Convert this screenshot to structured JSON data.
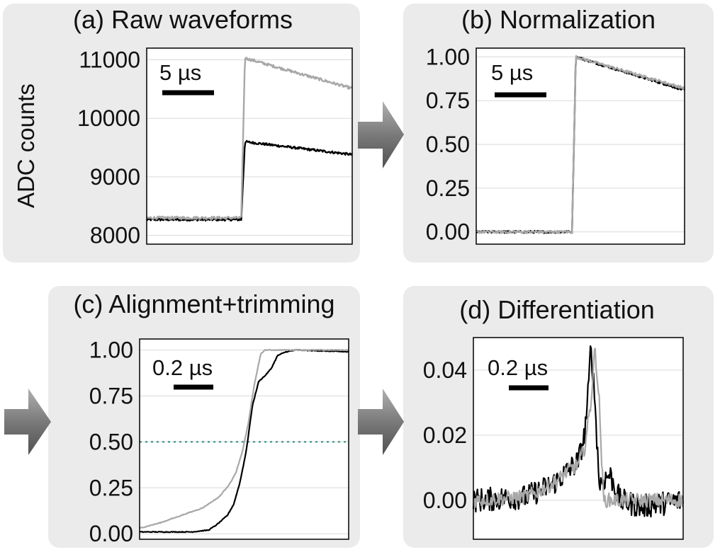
{
  "arrow_color": "#7a7a7a",
  "colors": {
    "panel_bg": "#ebebeb",
    "plot_bg": "#ffffff",
    "grid": "#d9d9d9",
    "black_trace": "#000000",
    "gray_trace": "#a8a8a8",
    "threshold_line": "#2a8a7a"
  },
  "chart_data": [
    {
      "id": "a",
      "type": "line",
      "title": "(a) Raw waveforms",
      "ylabel": "ADC counts",
      "ylim": [
        7850,
        11200
      ],
      "yticks": [
        "8000",
        "9000",
        "10000",
        "11000"
      ],
      "ytick_values": [
        8000,
        9000,
        10000,
        11000
      ],
      "scale_bar": "5 µs",
      "grid": true,
      "series": [
        {
          "color": "black",
          "values_summary": {
            "baseline": 8270,
            "step_at_fraction": 0.46,
            "peak": 9600,
            "end": 9380
          }
        },
        {
          "color": "gray",
          "values_summary": {
            "baseline": 8300,
            "step_at_fraction": 0.46,
            "peak": 11030,
            "end": 10510
          }
        }
      ]
    },
    {
      "id": "b",
      "type": "line",
      "title": "(b) Normalization",
      "ylim": [
        -0.07,
        1.05
      ],
      "yticks": [
        "0.00",
        "0.25",
        "0.50",
        "0.75",
        "1.00"
      ],
      "ytick_values": [
        0,
        0.25,
        0.5,
        0.75,
        1.0
      ],
      "scale_bar": "5 µs",
      "grid": true,
      "series": [
        {
          "color": "black",
          "values_summary": {
            "baseline": 0.0,
            "step_at_fraction": 0.46,
            "peak": 1.0,
            "end": 0.81
          }
        },
        {
          "color": "gray",
          "values_summary": {
            "baseline": 0.0,
            "step_at_fraction": 0.46,
            "peak": 1.0,
            "end": 0.82
          }
        }
      ]
    },
    {
      "id": "c",
      "type": "line",
      "title": "(c) Alignment+trimming",
      "ylim": [
        -0.03,
        1.06
      ],
      "yticks": [
        "0.00",
        "0.25",
        "0.50",
        "0.75",
        "1.00"
      ],
      "ytick_values": [
        0,
        0.25,
        0.5,
        0.75,
        1.0
      ],
      "scale_bar": "0.2 µs",
      "grid": true,
      "threshold": 0.5,
      "series": [
        {
          "color": "black",
          "x": [
            0,
            0.1,
            0.25,
            0.33,
            0.37,
            0.42,
            0.45,
            0.48,
            0.51,
            0.54,
            0.57,
            0.6,
            0.63,
            0.66,
            0.7,
            0.75,
            1.0
          ],
          "y": [
            0.01,
            0.01,
            0.01,
            0.02,
            0.05,
            0.1,
            0.16,
            0.28,
            0.45,
            0.7,
            0.83,
            0.86,
            0.9,
            0.97,
            0.99,
            1.0,
            0.99
          ]
        },
        {
          "color": "gray",
          "x": [
            0,
            0.1,
            0.2,
            0.3,
            0.38,
            0.43,
            0.46,
            0.49,
            0.52,
            0.55,
            0.58,
            0.6,
            0.63,
            1.0
          ],
          "y": [
            0.03,
            0.06,
            0.1,
            0.14,
            0.2,
            0.27,
            0.33,
            0.44,
            0.6,
            0.82,
            0.98,
            1.0,
            1.0,
            1.0
          ]
        }
      ]
    },
    {
      "id": "d",
      "type": "line",
      "title": "(d) Differentiation",
      "ylim": [
        -0.012,
        0.05
      ],
      "yticks": [
        "0.00",
        "0.02",
        "0.04"
      ],
      "ytick_values": [
        0,
        0.02,
        0.04
      ],
      "scale_bar": "0.2 µs",
      "grid": true,
      "series": [
        {
          "color": "black",
          "x": [
            0,
            0.25,
            0.35,
            0.4,
            0.45,
            0.5,
            0.53,
            0.55,
            0.56,
            0.58,
            0.6,
            0.65,
            0.7,
            0.8,
            1.0
          ],
          "y": [
            0.0,
            0.001,
            0.004,
            0.006,
            0.009,
            0.012,
            0.02,
            0.035,
            0.048,
            0.03,
            0.005,
            0.008,
            0.0,
            -0.002,
            0.0
          ]
        },
        {
          "color": "gray",
          "x": [
            0,
            0.25,
            0.35,
            0.4,
            0.45,
            0.5,
            0.53,
            0.56,
            0.58,
            0.6,
            0.62,
            0.7,
            0.8,
            1.0
          ],
          "y": [
            0.0,
            0.001,
            0.004,
            0.006,
            0.009,
            0.011,
            0.016,
            0.03,
            0.047,
            0.03,
            0.0,
            0.0,
            0.0,
            0.0
          ]
        }
      ]
    }
  ]
}
